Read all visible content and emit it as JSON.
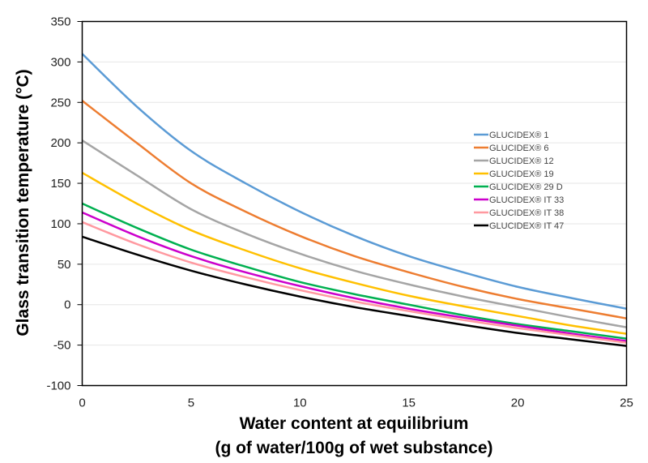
{
  "chart_data": {
    "type": "line",
    "title": "",
    "xlabel": "Water content at equilibrium",
    "xlabel_line2": "(g of water/100g of wet substance)",
    "ylabel": "Glass transition temperature (°C)",
    "xlim": [
      0,
      25
    ],
    "ylim": [
      -100,
      350
    ],
    "xticks": [
      0,
      5,
      10,
      15,
      20,
      25
    ],
    "yticks": [
      -100,
      -50,
      0,
      50,
      100,
      150,
      200,
      250,
      300,
      350
    ],
    "grid": "horizontal",
    "legend_position": "right",
    "x": [
      0,
      2.5,
      5,
      7.5,
      10,
      12.5,
      15,
      17.5,
      20,
      22.5,
      25
    ],
    "series": [
      {
        "name": "GLUCIDEX® 1",
        "color": "#5b9bd5",
        "values": [
          310,
          245,
          190,
          150,
          115,
          85,
          60,
          40,
          22,
          8,
          -5
        ]
      },
      {
        "name": "GLUCIDEX® 6",
        "color": "#ed7d31",
        "values": [
          252,
          200,
          150,
          115,
          85,
          60,
          40,
          22,
          7,
          -5,
          -17
        ]
      },
      {
        "name": "GLUCIDEX® 12",
        "color": "#a5a5a5",
        "values": [
          203,
          160,
          118,
          88,
          63,
          42,
          25,
          10,
          -3,
          -16,
          -28
        ]
      },
      {
        "name": "GLUCIDEX® 19",
        "color": "#ffc000",
        "values": [
          163,
          125,
          92,
          67,
          45,
          27,
          11,
          -2,
          -14,
          -26,
          -36
        ]
      },
      {
        "name": "GLUCIDEX® 29 D",
        "color": "#00b050",
        "values": [
          125,
          95,
          68,
          47,
          28,
          13,
          0,
          -13,
          -24,
          -33,
          -42
        ]
      },
      {
        "name": "GLUCIDEX® IT 33",
        "color": "#cc00cc",
        "values": [
          114,
          85,
          60,
          40,
          23,
          8,
          -5,
          -16,
          -26,
          -36,
          -45
        ]
      },
      {
        "name": "GLUCIDEX® IT 38",
        "color": "#ff99a0",
        "values": [
          102,
          75,
          52,
          34,
          18,
          4,
          -8,
          -19,
          -29,
          -38,
          -47
        ]
      },
      {
        "name": "GLUCIDEX® IT 47",
        "color": "#000000",
        "values": [
          84,
          62,
          42,
          25,
          10,
          -3,
          -14,
          -25,
          -35,
          -43,
          -51
        ]
      }
    ]
  }
}
